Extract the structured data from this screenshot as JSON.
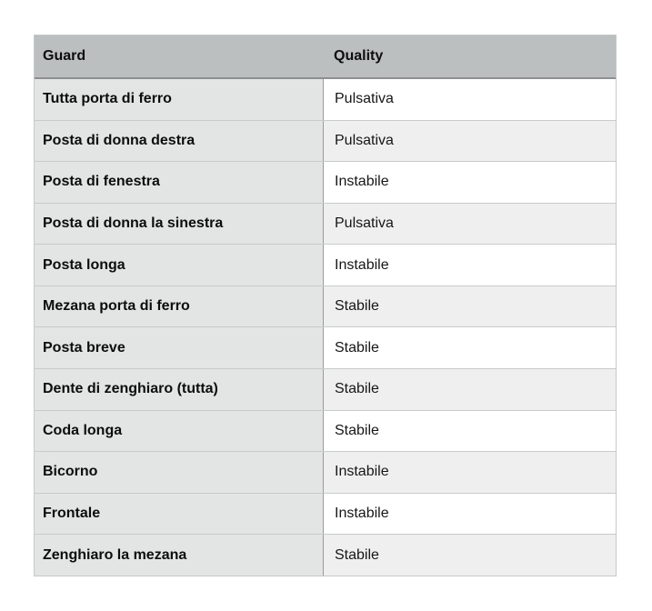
{
  "table": {
    "columns": [
      {
        "label": "Guard"
      },
      {
        "label": "Quality"
      }
    ],
    "rows": [
      {
        "guard": "Tutta porta di ferro",
        "quality": "Pulsativa"
      },
      {
        "guard": "Posta di donna destra",
        "quality": "Pulsativa"
      },
      {
        "guard": "Posta di fenestra",
        "quality": "Instabile"
      },
      {
        "guard": "Posta di donna la sinestra",
        "quality": "Pulsativa"
      },
      {
        "guard": "Posta longa",
        "quality": "Instabile"
      },
      {
        "guard": "Mezana porta di ferro",
        "quality": "Stabile"
      },
      {
        "guard": "Posta breve",
        "quality": "Stabile"
      },
      {
        "guard": "Dente di zenghiaro (tutta)",
        "quality": "Stabile"
      },
      {
        "guard": "Coda longa",
        "quality": "Stabile"
      },
      {
        "guard": "Bicorno",
        "quality": "Instabile"
      },
      {
        "guard": "Frontale",
        "quality": "Instabile"
      },
      {
        "guard": "Zenghiaro la mezana",
        "quality": "Stabile"
      }
    ],
    "colors": {
      "header_bg": "#bbbfc0",
      "guard_cell_bg": "#e3e4e4",
      "quality_row_odd_bg": "#ffffff",
      "quality_row_even_bg": "#efefef",
      "row_border": "#c8cbcb",
      "header_bottom_border": "#8d9091",
      "column_divider": "#9a9d9d",
      "text": "#111111"
    }
  }
}
